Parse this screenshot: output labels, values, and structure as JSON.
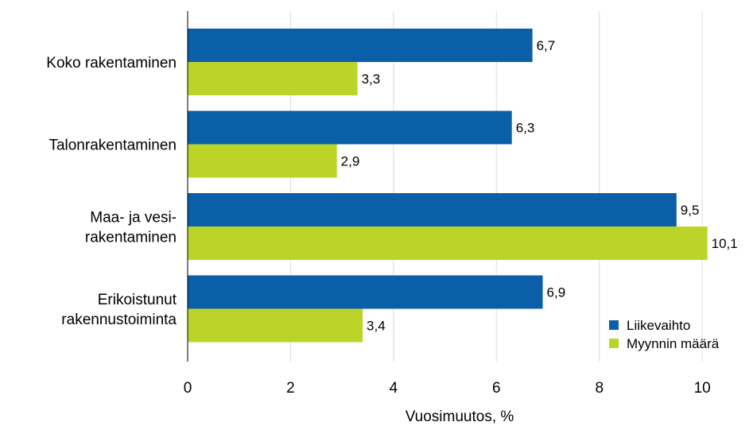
{
  "chart_data": {
    "type": "bar",
    "orientation": "horizontal",
    "categories": [
      [
        "Koko rakentaminen"
      ],
      [
        "Talonrakentaminen"
      ],
      [
        "Maa- ja vesi-",
        "rakentaminen"
      ],
      [
        "Erikoistunut",
        "rakennustoiminta"
      ]
    ],
    "series": [
      {
        "name": "Liikevaihto",
        "values": [
          6.7,
          6.3,
          9.5,
          6.9
        ],
        "labels": [
          "6,7",
          "6,3",
          "9,5",
          "6,9"
        ],
        "color": "#0a5fa8"
      },
      {
        "name": "Myynnin määrä",
        "values": [
          3.3,
          2.9,
          10.1,
          3.4
        ],
        "labels": [
          "3,3",
          "2,9",
          "10,1",
          "3,4"
        ],
        "color": "#bcd42a"
      }
    ],
    "xlabel": "Vuosimuutos, %",
    "xlim": [
      0,
      10.6
    ],
    "xticks": [
      0,
      2,
      4,
      6,
      8,
      10
    ],
    "xtick_labels": [
      "0",
      "2",
      "4",
      "6",
      "8",
      "10"
    ],
    "grid": "vertical",
    "legend_position": "bottom-right",
    "gridline_color": "#dcdcdc"
  }
}
